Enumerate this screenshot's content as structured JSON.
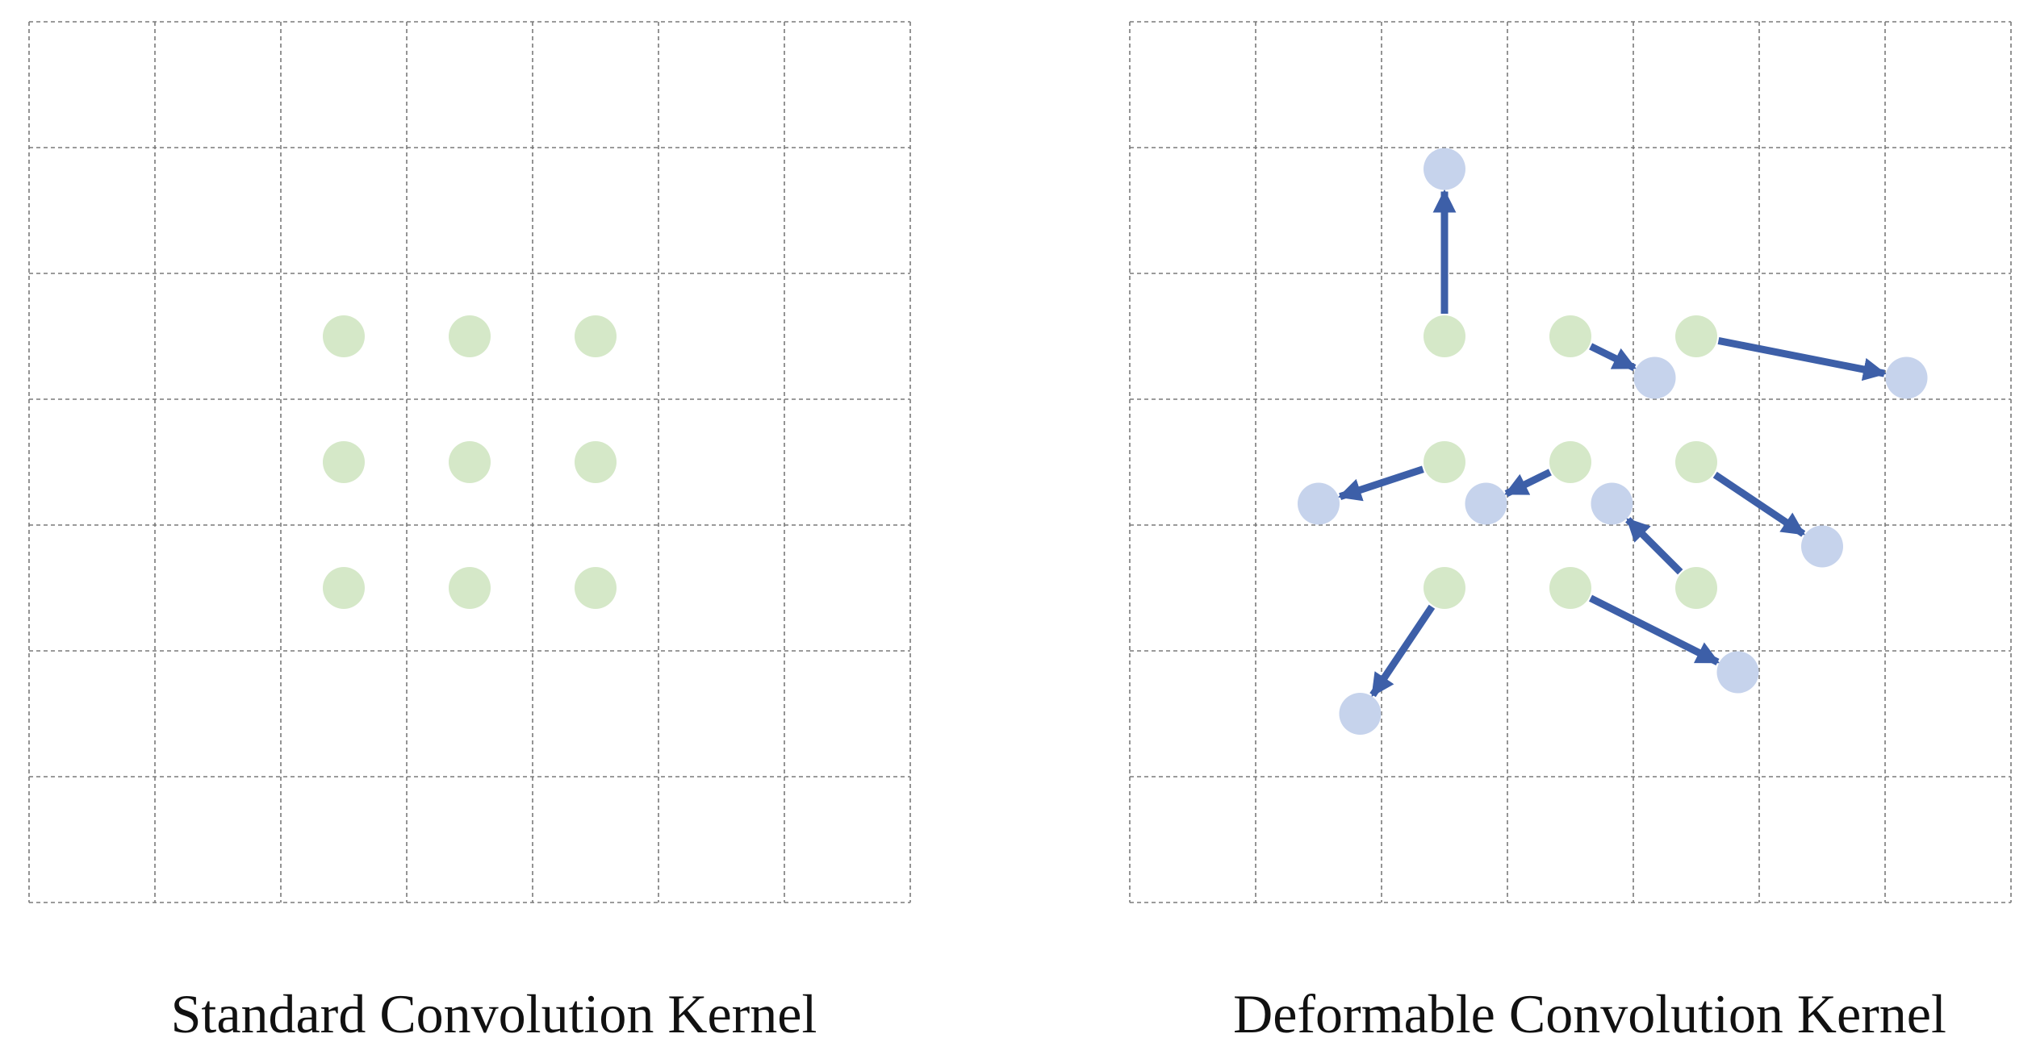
{
  "panels": [
    {
      "id": "standard",
      "caption": "Standard Convolution Kernel",
      "grid": {
        "rows": 7,
        "cols": 7,
        "line_color": "#7a7a7a"
      },
      "samples": [
        {
          "row": 2,
          "col": 2
        },
        {
          "row": 2,
          "col": 3
        },
        {
          "row": 2,
          "col": 4
        },
        {
          "row": 3,
          "col": 2
        },
        {
          "row": 3,
          "col": 3
        },
        {
          "row": 3,
          "col": 4
        },
        {
          "row": 4,
          "col": 2
        },
        {
          "row": 4,
          "col": 3
        },
        {
          "row": 4,
          "col": 4
        }
      ]
    },
    {
      "id": "deformable",
      "caption": "Deformable Convolution Kernel",
      "grid": {
        "rows": 7,
        "cols": 7,
        "line_color": "#7a7a7a"
      },
      "samples": [
        {
          "row": 2,
          "col": 2,
          "to_row": 0.67,
          "to_col": 2.0
        },
        {
          "row": 2,
          "col": 3,
          "to_row": 2.33,
          "to_col": 3.67
        },
        {
          "row": 2,
          "col": 4,
          "to_row": 2.33,
          "to_col": 5.67
        },
        {
          "row": 3,
          "col": 2,
          "to_row": 3.33,
          "to_col": 1.0
        },
        {
          "row": 3,
          "col": 3,
          "to_row": 3.33,
          "to_col": 2.33
        },
        {
          "row": 3,
          "col": 4,
          "to_row": 3.67,
          "to_col": 5.0
        },
        {
          "row": 4,
          "col": 2,
          "to_row": 5.0,
          "to_col": 1.33
        },
        {
          "row": 4,
          "col": 3,
          "to_row": 4.67,
          "to_col": 4.33
        },
        {
          "row": 4,
          "col": 4,
          "to_row": 3.33,
          "to_col": 3.33
        }
      ]
    }
  ],
  "colors": {
    "sample_point": "#d5e8c8",
    "offset_point": "#c6d3ec",
    "offset_arrow": "#3d5fa8",
    "offset_arrow_edge": "#2d4a8c",
    "background": "#ffffff"
  }
}
